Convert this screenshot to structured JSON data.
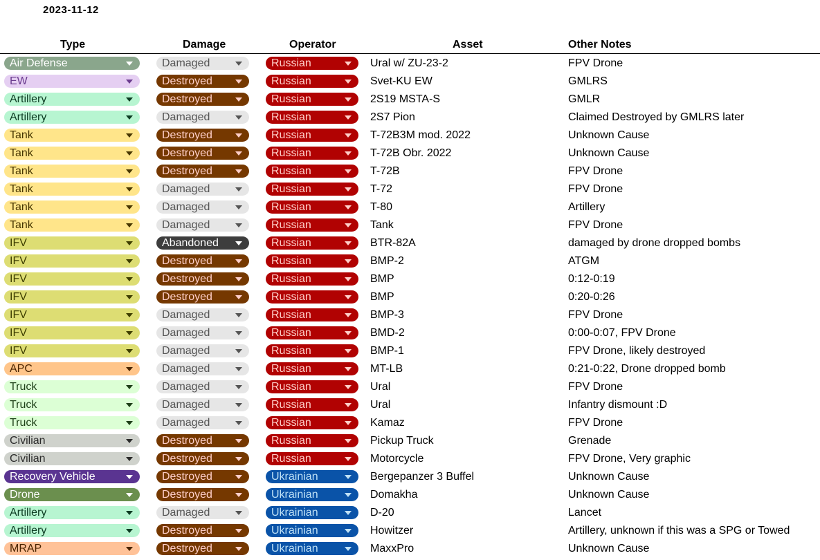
{
  "date": "2023-11-12",
  "headers": {
    "type": "Type",
    "damage": "Damage",
    "operator": "Operator",
    "asset": "Asset",
    "notes": "Other Notes"
  },
  "colors": {
    "type": {
      "Air Defense": {
        "bg": "#8aa68c",
        "fg": "#ffffff"
      },
      "EW": {
        "bg": "#e5cff2",
        "fg": "#6b3c8f"
      },
      "Artillery": {
        "bg": "#b7f5d1",
        "fg": "#0c3b22"
      },
      "Tank": {
        "bg": "#ffe58a",
        "fg": "#473600"
      },
      "IFV": {
        "bg": "#dddd73",
        "fg": "#3d3d00"
      },
      "APC": {
        "bg": "#ffc58a",
        "fg": "#4a2400"
      },
      "Truck": {
        "bg": "#dcffd5",
        "fg": "#1d3f17"
      },
      "Civilian": {
        "bg": "#cfd2cc",
        "fg": "#2a2a2a"
      },
      "Recovery Vehicle": {
        "bg": "#5a3491",
        "fg": "#ffffff"
      },
      "Drone": {
        "bg": "#6b8f4e",
        "fg": "#ffffff"
      },
      "MRAP": {
        "bg": "#ffc298",
        "fg": "#4a2400"
      }
    },
    "damage": {
      "Damaged": {
        "bg": "#e6e6e6",
        "fg": "#545454"
      },
      "Destroyed": {
        "bg": "#753800",
        "fg": "#ffcfc9"
      },
      "Abandoned": {
        "bg": "#3d3d3d",
        "fg": "#ffffff"
      }
    },
    "operator": {
      "Russian": {
        "bg": "#b10202",
        "fg": "#ffcfc9"
      },
      "Ukrainian": {
        "bg": "#0a53a8",
        "fg": "#bfe1f6"
      }
    }
  },
  "rows": [
    {
      "type": "Air Defense",
      "damage": "Damaged",
      "operator": "Russian",
      "asset": "Ural w/ ZU-23-2",
      "notes": "FPV Drone"
    },
    {
      "type": "EW",
      "damage": "Destroyed",
      "operator": "Russian",
      "asset": "Svet-KU EW",
      "notes": "GMLRS"
    },
    {
      "type": "Artillery",
      "damage": "Destroyed",
      "operator": "Russian",
      "asset": "2S19 MSTA-S",
      "notes": "GMLR"
    },
    {
      "type": "Artillery",
      "damage": "Damaged",
      "operator": "Russian",
      "asset": "2S7 Pion",
      "notes": "Claimed Destroyed by GMLRS later"
    },
    {
      "type": "Tank",
      "damage": "Destroyed",
      "operator": "Russian",
      "asset": "T-72B3M mod. 2022",
      "notes": "Unknown Cause"
    },
    {
      "type": "Tank",
      "damage": "Destroyed",
      "operator": "Russian",
      "asset": "T-72B Obr. 2022",
      "notes": "Unknown Cause"
    },
    {
      "type": "Tank",
      "damage": "Destroyed",
      "operator": "Russian",
      "asset": "T-72B",
      "notes": "FPV Drone"
    },
    {
      "type": "Tank",
      "damage": "Damaged",
      "operator": "Russian",
      "asset": "T-72",
      "notes": "FPV Drone"
    },
    {
      "type": "Tank",
      "damage": "Damaged",
      "operator": "Russian",
      "asset": "T-80",
      "notes": "Artillery"
    },
    {
      "type": "Tank",
      "damage": "Damaged",
      "operator": "Russian",
      "asset": "Tank",
      "notes": "FPV Drone"
    },
    {
      "type": "IFV",
      "damage": "Abandoned",
      "operator": "Russian",
      "asset": "BTR-82A",
      "notes": "damaged by drone dropped bombs"
    },
    {
      "type": "IFV",
      "damage": "Destroyed",
      "operator": "Russian",
      "asset": "BMP-2",
      "notes": "ATGM"
    },
    {
      "type": "IFV",
      "damage": "Destroyed",
      "operator": "Russian",
      "asset": "BMP",
      "notes": "0:12-0:19"
    },
    {
      "type": "IFV",
      "damage": "Destroyed",
      "operator": "Russian",
      "asset": "BMP",
      "notes": "0:20-0:26"
    },
    {
      "type": "IFV",
      "damage": "Damaged",
      "operator": "Russian",
      "asset": "BMP-3",
      "notes": "FPV Drone"
    },
    {
      "type": "IFV",
      "damage": "Damaged",
      "operator": "Russian",
      "asset": "BMD-2",
      "notes": "0:00-0:07, FPV Drone"
    },
    {
      "type": "IFV",
      "damage": "Damaged",
      "operator": "Russian",
      "asset": "BMP-1",
      "notes": "FPV Drone, likely destroyed"
    },
    {
      "type": "APC",
      "damage": "Damaged",
      "operator": "Russian",
      "asset": "MT-LB",
      "notes": "0:21-0:22, Drone dropped bomb"
    },
    {
      "type": "Truck",
      "damage": "Damaged",
      "operator": "Russian",
      "asset": "Ural",
      "notes": "FPV Drone"
    },
    {
      "type": "Truck",
      "damage": "Damaged",
      "operator": "Russian",
      "asset": "Ural",
      "notes": "Infantry dismount :D"
    },
    {
      "type": "Truck",
      "damage": "Damaged",
      "operator": "Russian",
      "asset": "Kamaz",
      "notes": "FPV Drone"
    },
    {
      "type": "Civilian",
      "damage": "Destroyed",
      "operator": "Russian",
      "asset": "Pickup Truck",
      "notes": "Grenade"
    },
    {
      "type": "Civilian",
      "damage": "Destroyed",
      "operator": "Russian",
      "asset": "Motorcycle",
      "notes": "FPV Drone, Very graphic"
    },
    {
      "type": "Recovery Vehicle",
      "damage": "Destroyed",
      "operator": "Ukrainian",
      "asset": "Bergepanzer 3 Buffel",
      "notes": "Unknown Cause"
    },
    {
      "type": "Drone",
      "damage": "Destroyed",
      "operator": "Ukrainian",
      "asset": "Domakha",
      "notes": "Unknown Cause"
    },
    {
      "type": "Artillery",
      "damage": "Damaged",
      "operator": "Ukrainian",
      "asset": "D-20",
      "notes": "Lancet"
    },
    {
      "type": "Artillery",
      "damage": "Destroyed",
      "operator": "Ukrainian",
      "asset": "Howitzer",
      "notes": "Artillery, unknown if this was a SPG or Towed"
    },
    {
      "type": "MRAP",
      "damage": "Destroyed",
      "operator": "Ukrainian",
      "asset": "MaxxPro",
      "notes": "Unknown Cause"
    }
  ]
}
